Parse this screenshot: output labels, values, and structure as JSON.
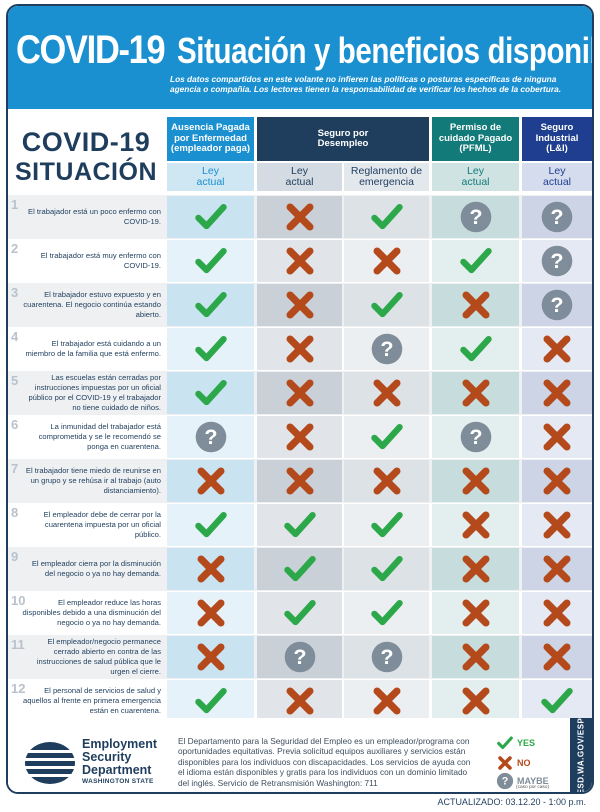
{
  "header": {
    "title_main": "COVID-19",
    "title_sub": "Situación y beneficios disponibles",
    "disclaimer": "Los datos compartidos en este volante no infieren las políticas o posturas específicas de ninguna agencia o compañía. Los lectores tienen la responsabilidad de verificar los hechos de la cobertura."
  },
  "situation_title": {
    "line1": "COVID-19",
    "line2": "SITUACIÓN"
  },
  "columns": {
    "sick_leave": {
      "group": "Ausencia Pagada por Enfermedad",
      "group_note": "(empleador paga)",
      "sub": "Ley actual"
    },
    "unemployment": {
      "group": "Seguro por Desempleo",
      "sub_current": "Ley actual",
      "sub_emergency": "Reglamento de emergencia"
    },
    "pfml": {
      "group": "Permiso de cuidado Pagado",
      "group_note": "(PFML)",
      "sub": "Ley actual"
    },
    "li": {
      "group": "Seguro Industrial",
      "group_note": "(L&I)",
      "sub": "Ley actual"
    }
  },
  "colors": {
    "header_blue": "#1a90d0",
    "navy": "#1f3e5e",
    "pfml_teal": "#137a7a",
    "yes_green": "#2ca84a",
    "no_orange": "#b44a1c",
    "maybe_gray": "#7f8c99"
  },
  "rows": [
    {
      "num": "1",
      "text": "El trabajador está un poco enfermo con COVID-19.",
      "values": [
        "yes",
        "no",
        "yes",
        "maybe",
        "maybe"
      ]
    },
    {
      "num": "2",
      "text": "El trabajador está muy enfermo con COVID-19.",
      "values": [
        "yes",
        "no",
        "no",
        "yes",
        "maybe"
      ]
    },
    {
      "num": "3",
      "text": "El trabajador estuvo expuesto y en cuarentena. El negocio continúa estando abierto.",
      "values": [
        "yes",
        "no",
        "yes",
        "no",
        "maybe"
      ]
    },
    {
      "num": "4",
      "text": "El trabajador está cuidando a un miembro de la familia que está enfermo.",
      "values": [
        "yes",
        "no",
        "maybe",
        "yes",
        "no"
      ]
    },
    {
      "num": "5",
      "text": "Las escuelas están cerradas por instrucciones impuestas por un oficial público por el COVID-19 y el trabajador no tiene cuidado de niños.",
      "values": [
        "yes",
        "no",
        "no",
        "no",
        "no"
      ]
    },
    {
      "num": "6",
      "text": "La inmunidad del trabajador está comprometida y se le recomendó se ponga en cuarentena.",
      "values": [
        "maybe",
        "no",
        "yes",
        "maybe",
        "no"
      ]
    },
    {
      "num": "7",
      "text": "El trabajador tiene miedo de reunirse en un grupo y se rehúsa ir al trabajo (auto distanciamiento).",
      "values": [
        "no",
        "no",
        "no",
        "no",
        "no"
      ]
    },
    {
      "num": "8",
      "text": "El empleador debe de cerrar por la cuarentena impuesta por un oficial público.",
      "values": [
        "yes",
        "yes",
        "yes",
        "no",
        "no"
      ]
    },
    {
      "num": "9",
      "text": "El empleador cierra por la disminución del negocio o ya no hay demanda.",
      "values": [
        "no",
        "yes",
        "yes",
        "no",
        "no"
      ]
    },
    {
      "num": "10",
      "text": "El empleador reduce las horas disponibles debido a una disminución del negocio o ya no hay demanda.",
      "values": [
        "no",
        "yes",
        "yes",
        "no",
        "no"
      ]
    },
    {
      "num": "11",
      "text": "El empleador/negocio permanece cerrado abierto en contra de las instrucciones de salud pública que le urgen el cierre.",
      "values": [
        "no",
        "maybe",
        "maybe",
        "no",
        "no"
      ]
    },
    {
      "num": "12",
      "text": "El personal de servicios de salud y aquellos al frente en primera emergencia están en cuarentena.",
      "values": [
        "yes",
        "no",
        "no",
        "no",
        "yes"
      ]
    }
  ],
  "footer": {
    "logo_line1": "Employment",
    "logo_line2": "Security",
    "logo_line3": "Department",
    "logo_line4": "WASHINGTON STATE",
    "statement": "El Departamento para la Seguridad del Empleo es un empleador/programa con oportunidades equitativas. Previa solicitud equipos auxiliares y servicios están disponibles para los individuos con discapacidades. Los servicios de ayuda con el idioma están disponibles y gratis para los individuos con un dominio limitado del inglés. Servicio de Retransmisión Washington: 711",
    "legend": {
      "yes": "YES",
      "no": "NO",
      "maybe": "MAYBE",
      "maybe_note": "(caso por caso)"
    },
    "side_url": "ESD.WA.GOV/ESP"
  },
  "updated": "ACTUALIZADO: 03.12.20 - 1:00 p.m."
}
